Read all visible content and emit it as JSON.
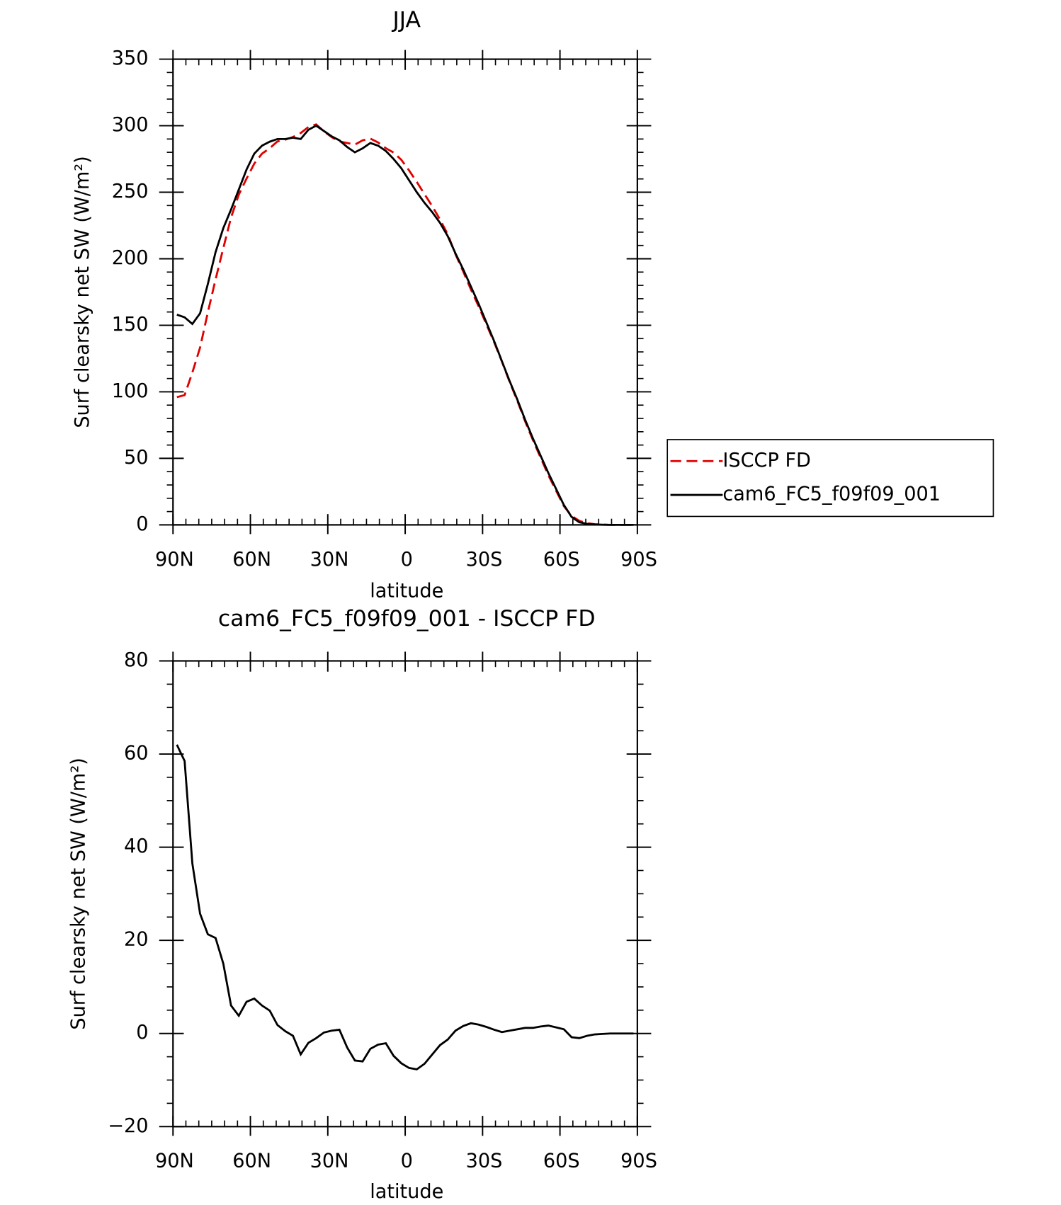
{
  "chart_data": [
    {
      "type": "line",
      "title": "JJA",
      "x_label": "latitude",
      "y_label": "Surf clearsky net SW (W/m²)",
      "x": [
        88.5,
        85.5,
        82.5,
        79.5,
        76.5,
        73.5,
        70.5,
        67.5,
        64.5,
        61.5,
        58.5,
        55.5,
        52.5,
        49.5,
        46.5,
        43.5,
        40.5,
        37.5,
        34.5,
        31.5,
        28.5,
        25.5,
        22.5,
        19.5,
        16.5,
        13.5,
        10.5,
        7.5,
        4.5,
        1.5,
        -1.5,
        -4.5,
        -7.5,
        -10.5,
        -13.5,
        -16.5,
        -19.5,
        -22.5,
        -25.5,
        -28.5,
        -31.5,
        -34.5,
        -37.5,
        -40.5,
        -43.5,
        -46.5,
        -49.5,
        -52.5,
        -55.5,
        -58.5,
        -61.5,
        -64.5,
        -67.5,
        -70.5,
        -73.5,
        -76.5,
        -79.5,
        -82.5,
        -85.5,
        -88.5
      ],
      "series": [
        {
          "name": "ISCCP FD",
          "color": "#e00000",
          "dash": true,
          "values": [
            96,
            97.5,
            114.5,
            133.3,
            159.7,
            184.5,
            208,
            231,
            248.2,
            260.2,
            271.5,
            279,
            283.1,
            288.2,
            289.5,
            291.5,
            294.5,
            299,
            301,
            295.8,
            291.4,
            288.2,
            287,
            285.8,
            289,
            290.3,
            287.4,
            283.1,
            279.8,
            274.4,
            266.4,
            257.7,
            248.5,
            239.5,
            229.5,
            218.3,
            203.4,
            190.4,
            176.8,
            164.1,
            150.6,
            137.2,
            122.7,
            107.4,
            93.1,
            77.8,
            63.8,
            50.5,
            37.3,
            25.7,
            14.1,
            6.8,
            3,
            1.3,
            0.5,
            0.2,
            0,
            0,
            0,
            0
          ]
        },
        {
          "name": "cam6_FC5_f09f09_001",
          "color": "#000000",
          "dash": false,
          "values": [
            158,
            156,
            151,
            159,
            181,
            205,
            223,
            237,
            252,
            267,
            279,
            285,
            288,
            290,
            290,
            291,
            290,
            297,
            300,
            296,
            292,
            289,
            284,
            280,
            283,
            287,
            285,
            281,
            275,
            268,
            259,
            250,
            242,
            235,
            227,
            217,
            204,
            192,
            179,
            166,
            152,
            138,
            123,
            108,
            94,
            79,
            65,
            52,
            39,
            27,
            15,
            6,
            2,
            0.8,
            0.3,
            0.1,
            0,
            0,
            0,
            0
          ]
        }
      ],
      "xlim": [
        90,
        -90
      ],
      "xticks": [
        {
          "value": 90,
          "label": "90N"
        },
        {
          "value": 60,
          "label": "60N"
        },
        {
          "value": 30,
          "label": "30N"
        },
        0,
        {
          "value": -30,
          "label": "30S"
        },
        {
          "value": -60,
          "label": "60S"
        },
        {
          "value": -90,
          "label": "90S"
        }
      ],
      "ylim": [
        0,
        350
      ],
      "yticks": [
        0,
        50,
        100,
        150,
        200,
        250,
        300,
        350
      ],
      "legend": "right"
    },
    {
      "type": "line",
      "title": "cam6_FC5_f09f09_001 - ISCCP FD",
      "x_label": "latitude",
      "y_label": "Surf clearsky net SW (W/m²)",
      "x": [
        88.5,
        85.5,
        82.5,
        79.5,
        76.5,
        73.5,
        70.5,
        67.5,
        64.5,
        61.5,
        58.5,
        55.5,
        52.5,
        49.5,
        46.5,
        43.5,
        40.5,
        37.5,
        34.5,
        31.5,
        28.5,
        25.5,
        22.5,
        19.5,
        16.5,
        13.5,
        10.5,
        7.5,
        4.5,
        1.5,
        -1.5,
        -4.5,
        -7.5,
        -10.5,
        -13.5,
        -16.5,
        -19.5,
        -22.5,
        -25.5,
        -28.5,
        -31.5,
        -34.5,
        -37.5,
        -40.5,
        -43.5,
        -46.5,
        -49.5,
        -52.5,
        -55.5,
        -58.5,
        -61.5,
        -64.5,
        -67.5,
        -70.5,
        -73.5,
        -76.5,
        -79.5,
        -82.5,
        -85.5,
        -88.5
      ],
      "color": "#000000",
      "values": [
        62,
        58.5,
        36.5,
        25.7,
        21.3,
        20.5,
        15,
        6,
        3.8,
        6.8,
        7.5,
        6,
        4.9,
        1.8,
        0.5,
        -0.5,
        -4.5,
        -2,
        -1,
        0.2,
        0.6,
        0.8,
        -3,
        -5.8,
        -6,
        -3.3,
        -2.4,
        -2.1,
        -4.8,
        -6.4,
        -7.4,
        -7.7,
        -6.5,
        -4.5,
        -2.5,
        -1.3,
        0.6,
        1.6,
        2.2,
        1.9,
        1.4,
        0.8,
        0.3,
        0.6,
        0.9,
        1.2,
        1.2,
        1.5,
        1.7,
        1.3,
        0.9,
        -0.8,
        -1,
        -0.5,
        -0.2,
        -0.1,
        0,
        0,
        0,
        0
      ],
      "xlim": [
        90,
        -90
      ],
      "xticks": [
        {
          "value": 90,
          "label": "90N"
        },
        {
          "value": 60,
          "label": "60N"
        },
        {
          "value": 30,
          "label": "30N"
        },
        0,
        {
          "value": -30,
          "label": "30S"
        },
        {
          "value": -60,
          "label": "60S"
        },
        {
          "value": -90,
          "label": "90S"
        }
      ],
      "ylim": [
        -20,
        80
      ],
      "yticks": [
        {
          "value": -20,
          "label": "−20"
        },
        0,
        20,
        40,
        60,
        80
      ]
    }
  ]
}
